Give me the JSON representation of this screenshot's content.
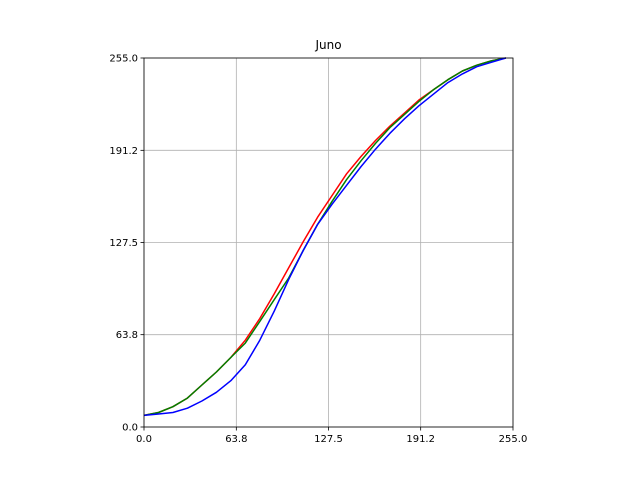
{
  "chart_data": {
    "type": "line",
    "title": "Juno",
    "xlabel": "",
    "ylabel": "",
    "xlim": [
      0,
      255
    ],
    "ylim": [
      0,
      255
    ],
    "xticks": [
      0,
      63.8,
      127.5,
      191.2,
      255
    ],
    "xtick_labels": [
      "0.0",
      "63.8",
      "127.5",
      "191.2",
      "255.0"
    ],
    "yticks": [
      0,
      63.8,
      127.5,
      191.2,
      255
    ],
    "ytick_labels": [
      "0.0",
      "63.8",
      "127.5",
      "191.2",
      "255.0"
    ],
    "grid": true,
    "series": [
      {
        "color": "#ff0000",
        "x": [
          0,
          10,
          20,
          30,
          40,
          50,
          60,
          70,
          80,
          90,
          100,
          110,
          120,
          130,
          140,
          150,
          160,
          170,
          180,
          190,
          200,
          210,
          220,
          230,
          240,
          250
        ],
        "y": [
          8,
          10,
          14,
          20,
          29,
          38,
          48,
          60,
          75,
          92,
          110,
          128,
          145,
          160,
          175,
          187,
          198,
          208,
          217,
          226,
          233,
          240,
          246,
          250,
          253,
          255
        ]
      },
      {
        "color": "#008000",
        "x": [
          0,
          10,
          20,
          30,
          40,
          50,
          60,
          70,
          80,
          90,
          100,
          110,
          120,
          130,
          140,
          150,
          160,
          170,
          180,
          190,
          200,
          210,
          220,
          230,
          240,
          250
        ],
        "y": [
          8,
          10,
          14,
          20,
          29,
          38,
          48,
          58,
          73,
          88,
          103,
          122,
          140,
          156,
          171,
          184,
          196,
          207,
          216,
          225,
          233,
          240,
          246,
          250,
          253,
          255
        ]
      },
      {
        "color": "#0000ff",
        "x": [
          0,
          10,
          20,
          30,
          40,
          50,
          60,
          70,
          80,
          90,
          100,
          110,
          120,
          130,
          140,
          150,
          160,
          170,
          180,
          190,
          200,
          210,
          220,
          230,
          240,
          250
        ],
        "y": [
          8,
          9,
          10,
          13,
          18,
          24,
          32,
          43,
          60,
          80,
          102,
          122,
          140,
          154,
          167,
          180,
          192,
          203,
          213,
          222,
          230,
          238,
          244,
          249,
          252,
          255
        ]
      }
    ]
  }
}
